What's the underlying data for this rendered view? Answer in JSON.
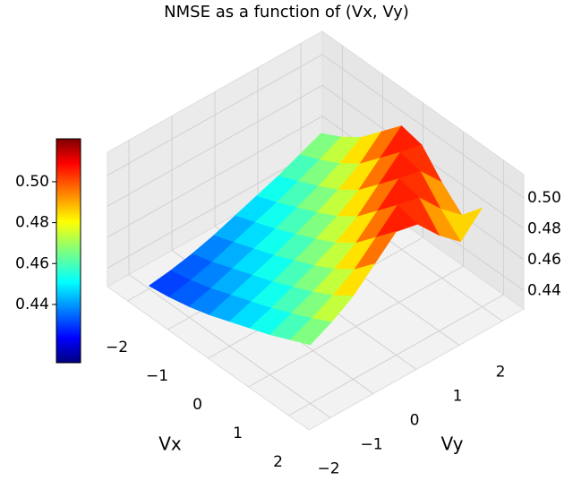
{
  "chart_data": {
    "type": "surface",
    "title": "NMSE as a function of (Vx, Vy)",
    "xlabel": "Vx",
    "ylabel": "Vy",
    "x": [
      -2,
      -1.5,
      -1,
      -0.5,
      0,
      0.5,
      1,
      1.5,
      2
    ],
    "y": [
      -2,
      -1.5,
      -1,
      -0.5,
      0,
      0.5,
      1,
      1.5,
      2
    ],
    "z": [
      [
        0.43,
        0.432,
        0.435,
        0.439,
        0.444,
        0.449,
        0.454,
        0.46,
        0.466
      ],
      [
        0.432,
        0.435,
        0.439,
        0.444,
        0.449,
        0.454,
        0.46,
        0.466,
        0.473
      ],
      [
        0.435,
        0.439,
        0.444,
        0.449,
        0.454,
        0.46,
        0.466,
        0.473,
        0.482
      ],
      [
        0.439,
        0.444,
        0.449,
        0.454,
        0.46,
        0.466,
        0.473,
        0.482,
        0.495
      ],
      [
        0.444,
        0.449,
        0.454,
        0.46,
        0.466,
        0.473,
        0.482,
        0.495,
        0.508
      ],
      [
        0.449,
        0.454,
        0.46,
        0.466,
        0.473,
        0.482,
        0.495,
        0.508,
        0.505
      ],
      [
        0.454,
        0.46,
        0.466,
        0.473,
        0.482,
        0.495,
        0.508,
        0.505,
        0.49
      ],
      [
        0.46,
        0.466,
        0.473,
        0.482,
        0.495,
        0.508,
        0.505,
        0.49,
        0.478
      ],
      [
        0.466,
        0.473,
        0.482,
        0.495,
        0.508,
        0.505,
        0.49,
        0.478,
        0.492
      ]
    ],
    "xlim": [
      -2.5,
      2.5
    ],
    "ylim": [
      -2.5,
      2.5
    ],
    "zlim": [
      0.428,
      0.515
    ],
    "xticks": [
      {
        "value": -2,
        "label": "−2"
      },
      {
        "value": -1,
        "label": "−1"
      },
      0,
      1,
      2
    ],
    "yticks": [
      {
        "value": -2,
        "label": "−2"
      },
      {
        "value": -1,
        "label": "−1"
      },
      0,
      1,
      2
    ],
    "zticks": [
      0.44,
      0.46,
      0.48,
      {
        "value": 0.5,
        "label": "0.50"
      }
    ],
    "colormap": "jet",
    "colorbar": {
      "lim": [
        0.4115,
        0.521
      ],
      "ticks": [
        0.44,
        0.46,
        0.48,
        {
          "value": 0.5,
          "label": "0.50"
        }
      ]
    }
  }
}
